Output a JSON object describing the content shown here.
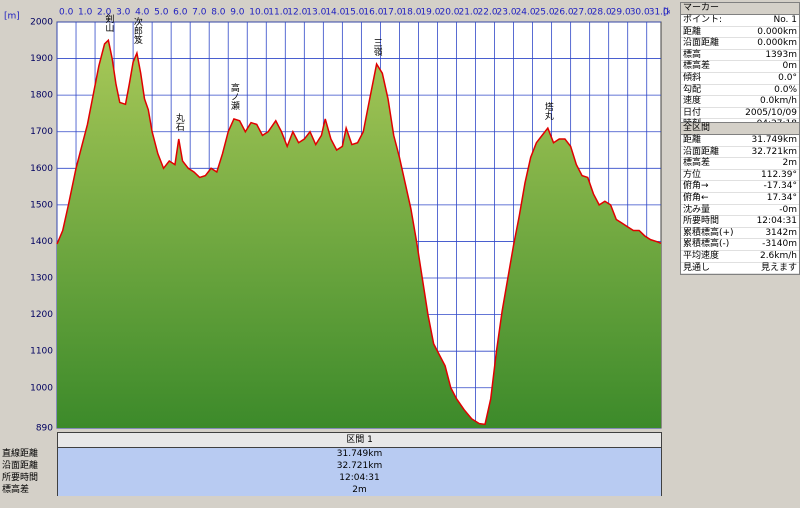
{
  "chart_data": {
    "type": "area",
    "x_label": "[km]",
    "y_label": "[m]",
    "line_color": "#e00000",
    "fill_top": "#a8c858",
    "fill_bottom": "#3c8a2a",
    "grid_color": "#3048c8",
    "grid": true,
    "xlim": [
      0,
      31.75
    ],
    "ylim": [
      890,
      2000
    ],
    "xticks": [
      {
        "value": 0,
        "label": "0.0"
      },
      {
        "value": 1,
        "label": "1.0"
      },
      {
        "value": 2,
        "label": "2.0"
      },
      {
        "value": 3,
        "label": "3.0"
      },
      {
        "value": 4,
        "label": "4.0"
      },
      {
        "value": 5,
        "label": "5.0"
      },
      {
        "value": 6,
        "label": "6.0"
      },
      {
        "value": 7,
        "label": "7.0"
      },
      {
        "value": 8,
        "label": "8.0"
      },
      {
        "value": 9,
        "label": "9.0"
      },
      {
        "value": 10,
        "label": "10.0"
      },
      {
        "value": 11,
        "label": "11.0"
      },
      {
        "value": 12,
        "label": "12.0"
      },
      {
        "value": 13,
        "label": "13.0"
      },
      {
        "value": 14,
        "label": "14.0"
      },
      {
        "value": 15,
        "label": "15.0"
      },
      {
        "value": 16,
        "label": "16.0"
      },
      {
        "value": 17,
        "label": "17.0"
      },
      {
        "value": 18,
        "label": "18.0"
      },
      {
        "value": 19,
        "label": "19.0"
      },
      {
        "value": 20,
        "label": "20.0"
      },
      {
        "value": 21,
        "label": "21.0"
      },
      {
        "value": 22,
        "label": "22.0"
      },
      {
        "value": 23,
        "label": "23.0"
      },
      {
        "value": 24,
        "label": "24.0"
      },
      {
        "value": 25,
        "label": "25.0"
      },
      {
        "value": 26,
        "label": "26.0"
      },
      {
        "value": 27,
        "label": "27.0"
      },
      {
        "value": 28,
        "label": "28.0"
      },
      {
        "value": 29,
        "label": "29.0"
      },
      {
        "value": 30,
        "label": "30.0"
      },
      {
        "value": 31,
        "label": "31.0"
      }
    ],
    "yticks": [
      890,
      1000,
      1100,
      1200,
      1300,
      1400,
      1500,
      1600,
      1700,
      1800,
      1900,
      2000
    ],
    "x": [
      0,
      0.3,
      0.6,
      1.0,
      1.3,
      1.6,
      1.9,
      2.2,
      2.5,
      2.7,
      2.9,
      3.1,
      3.3,
      3.6,
      3.8,
      4.0,
      4.2,
      4.4,
      4.6,
      4.8,
      5.0,
      5.3,
      5.6,
      5.9,
      6.2,
      6.4,
      6.6,
      6.9,
      7.2,
      7.5,
      7.8,
      8.1,
      8.4,
      8.7,
      9.0,
      9.3,
      9.6,
      9.9,
      10.2,
      10.5,
      10.8,
      11.1,
      11.5,
      11.8,
      12.1,
      12.4,
      12.7,
      13.0,
      13.3,
      13.6,
      13.9,
      14.1,
      14.4,
      14.7,
      15.0,
      15.2,
      15.5,
      15.8,
      16.1,
      16.4,
      16.8,
      17.1,
      17.4,
      17.7,
      18.0,
      18.3,
      18.6,
      18.9,
      19.2,
      19.5,
      19.8,
      20.1,
      20.4,
      20.7,
      21.0,
      21.4,
      21.8,
      22.2,
      22.5,
      22.8,
      23.1,
      23.4,
      23.7,
      24.0,
      24.3,
      24.6,
      24.9,
      25.2,
      25.5,
      25.8,
      26.1,
      26.4,
      26.7,
      27.0,
      27.3,
      27.6,
      27.9,
      28.2,
      28.5,
      28.8,
      29.1,
      29.4,
      29.7,
      30.0,
      30.3,
      30.6,
      30.9,
      31.2,
      31.5,
      31.75
    ],
    "values": [
      1393,
      1430,
      1500,
      1600,
      1660,
      1720,
      1800,
      1880,
      1940,
      1950,
      1900,
      1830,
      1780,
      1775,
      1830,
      1890,
      1915,
      1860,
      1790,
      1760,
      1700,
      1640,
      1600,
      1620,
      1610,
      1680,
      1620,
      1600,
      1590,
      1575,
      1580,
      1600,
      1590,
      1640,
      1700,
      1735,
      1730,
      1700,
      1725,
      1720,
      1690,
      1700,
      1730,
      1700,
      1660,
      1700,
      1670,
      1680,
      1700,
      1665,
      1690,
      1735,
      1680,
      1650,
      1660,
      1710,
      1665,
      1670,
      1700,
      1780,
      1885,
      1860,
      1790,
      1690,
      1630,
      1560,
      1490,
      1400,
      1300,
      1200,
      1120,
      1090,
      1060,
      1000,
      970,
      940,
      915,
      902,
      900,
      970,
      1100,
      1210,
      1300,
      1390,
      1470,
      1560,
      1630,
      1670,
      1690,
      1710,
      1670,
      1680,
      1680,
      1660,
      1610,
      1580,
      1575,
      1530,
      1500,
      1510,
      1500,
      1460,
      1450,
      1440,
      1430,
      1430,
      1415,
      1405,
      1400,
      1395
    ],
    "annotations": [
      {
        "text": "剣山",
        "x": 2.7
      },
      {
        "text": "次郎笈",
        "x": 4.2
      },
      {
        "text": "丸石",
        "x": 6.4
      },
      {
        "text": "高ノ瀬",
        "x": 9.3
      },
      {
        "text": "三嶺",
        "x": 16.8
      },
      {
        "text": "塔丸",
        "x": 25.8
      }
    ]
  },
  "marker": {
    "title": "マーカー",
    "rows": [
      [
        "ポイント:",
        "No. 1"
      ],
      [
        "距離",
        "0.000km"
      ],
      [
        "沿面距離",
        "0.000km"
      ],
      [
        "標高",
        "1393m"
      ],
      [
        "標高差",
        "0m"
      ],
      [
        "傾斜",
        "0.0°"
      ],
      [
        "勾配",
        "0.0%"
      ],
      [
        "速度",
        "0.0km/h"
      ],
      [
        "日付",
        "2005/10/09"
      ],
      [
        "時刻",
        "04:27:18"
      ]
    ]
  },
  "overall": {
    "title": "全区間",
    "rows": [
      [
        "距離",
        "31.749km"
      ],
      [
        "沿面距離",
        "32.721km"
      ],
      [
        "標高差",
        "2m"
      ],
      [
        "方位",
        "112.39°"
      ],
      [
        "俯角→",
        "-17.34°"
      ],
      [
        "俯角←",
        "17.34°"
      ],
      [
        "沈み量",
        "-0m"
      ],
      [
        "所要時間",
        "12:04:31"
      ],
      [
        "累積標高(+)",
        "3142m"
      ],
      [
        "累積標高(-)",
        "-3140m"
      ],
      [
        "平均速度",
        "2.6km/h"
      ],
      [
        "見通し",
        "見えます"
      ]
    ]
  },
  "section": {
    "title": "区間 1",
    "rows": [
      [
        "直線距離",
        "31.749km"
      ],
      [
        "沿面距離",
        "32.721km"
      ],
      [
        "所要時間",
        "12:04:31"
      ],
      [
        "標高差",
        "2m"
      ]
    ]
  }
}
